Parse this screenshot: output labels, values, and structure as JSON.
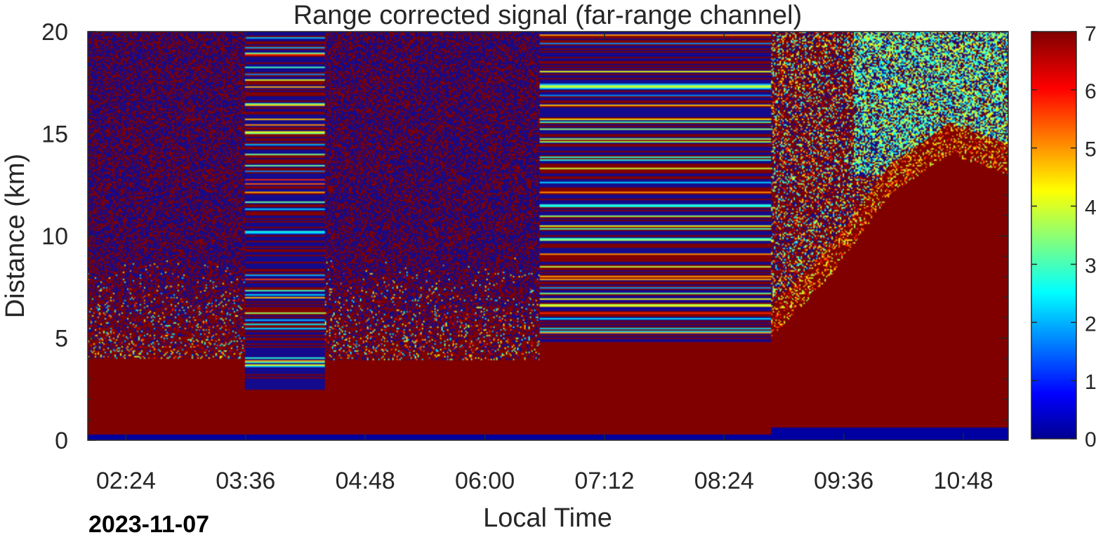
{
  "chart_data": {
    "type": "heatmap",
    "title": "Range corrected signal (far-range channel)",
    "xlabel": "Local Time",
    "ylabel": "Distance (km)",
    "date_label": "2023-11-07",
    "x_ticks": [
      "02:24",
      "03:36",
      "04:48",
      "06:00",
      "07:12",
      "08:24",
      "09:36",
      "10:48"
    ],
    "x_range": [
      "02:01",
      "11:15"
    ],
    "y_ticks": [
      0,
      5,
      10,
      15,
      20
    ],
    "ylim": [
      0,
      20
    ],
    "colorbar": {
      "colormap": "jet",
      "ticks": [
        0,
        1,
        2,
        3,
        4,
        5,
        6,
        7
      ],
      "range": [
        0,
        7
      ]
    },
    "segments": [
      {
        "start": "02:01",
        "end": "03:36",
        "pattern": "noise",
        "dense_top_km": 4.0,
        "noise_band_km": [
          4.0,
          9.0
        ]
      },
      {
        "start": "03:36",
        "end": "04:24",
        "pattern": "stripes",
        "dense_top_km": 2.4,
        "stripe_band_km": [
          2.4,
          20.0
        ]
      },
      {
        "start": "04:24",
        "end": "06:33",
        "pattern": "noise",
        "dense_top_km": 3.9,
        "noise_band_km": [
          3.9,
          9.0
        ]
      },
      {
        "start": "06:33",
        "end": "08:52",
        "pattern": "stripes",
        "dense_top_km": 4.7,
        "stripe_band_km": [
          4.7,
          20.0
        ]
      },
      {
        "start": "08:52",
        "end": "11:15",
        "pattern": "growing",
        "dense_top_km": [
          5.0,
          8.0,
          12.0,
          14.0,
          13.0
        ],
        "low_signal_region_km": [
          14.0,
          20.0
        ]
      }
    ],
    "surface_blue_band_km": [
      0.0,
      0.3
    ]
  }
}
